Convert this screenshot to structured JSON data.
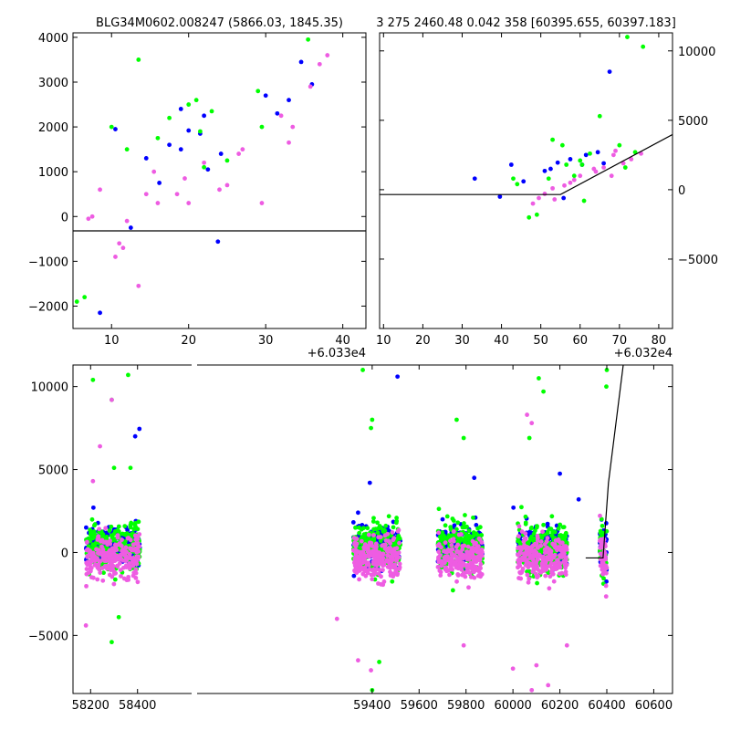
{
  "chart_data": [
    {
      "type": "scatter",
      "title": "BLG34M0602.008247 (5866.03, 1845.35)",
      "xlabel": "",
      "ylabel": "",
      "x_offset_label": "+6.033e4",
      "xlim": [
        60335,
        60373
      ],
      "ylim": [
        -2500,
        4100
      ],
      "xticks": [
        10,
        20,
        30,
        40,
        50,
        60,
        70
      ],
      "yticks": [
        "−2000",
        "−1000",
        "0",
        "1000",
        "2000",
        "3000",
        "4000"
      ],
      "ytick_values": [
        -2000,
        -1000,
        0,
        1000,
        2000,
        3000,
        4000
      ],
      "model_line": [
        [
          60335,
          -320
        ],
        [
          60374.5,
          -320
        ],
        [
          60403,
          4150
        ]
      ],
      "series": [
        {
          "color": "#0000ff",
          "points": [
            [
              60364.6,
              3450
            ],
            [
              60366.0,
              2950
            ],
            [
              60360.0,
              2700
            ],
            [
              60363.0,
              2600
            ],
            [
              60361.5,
              2300
            ],
            [
              60352.0,
              2250
            ],
            [
              60350.0,
              1920
            ],
            [
              60347.5,
              1600
            ],
            [
              60349.0,
              1500
            ],
            [
              60354.2,
              1400
            ],
            [
              60344.5,
              1300
            ],
            [
              60352.5,
              1050
            ],
            [
              60346.2,
              750
            ],
            [
              60353.8,
              -560
            ],
            [
              60334.6,
              1950
            ],
            [
              60340.5,
              1950
            ],
            [
              60342.5,
              -250
            ],
            [
              60338.5,
              -2150
            ],
            [
              60349.0,
              2400
            ],
            [
              60351.5,
              1850
            ]
          ]
        },
        {
          "color": "#00ff00",
          "points": [
            [
              60365.5,
              3950
            ],
            [
              60343.5,
              3500
            ],
            [
              60359.0,
              2800
            ],
            [
              60351.0,
              2600
            ],
            [
              60350.0,
              2500
            ],
            [
              60353.0,
              2350
            ],
            [
              60347.5,
              2200
            ],
            [
              60351.5,
              1900
            ],
            [
              60359.5,
              2000
            ],
            [
              60342.0,
              1500
            ],
            [
              60346.0,
              1750
            ],
            [
              60333.0,
              750
            ],
            [
              60332.5,
              400
            ],
            [
              60340.0,
              2000
            ],
            [
              60336.5,
              -1800
            ],
            [
              60335.5,
              -1900
            ],
            [
              60355.0,
              1250
            ],
            [
              60352.0,
              1100
            ]
          ]
        },
        {
          "color": "#ee5ce2",
          "points": [
            [
              60367.0,
              3400
            ],
            [
              60368.0,
              3600
            ],
            [
              60362.0,
              2250
            ],
            [
              60363.5,
              2000
            ],
            [
              60365.8,
              2900
            ],
            [
              60363.0,
              1650
            ],
            [
              60357.0,
              1500
            ],
            [
              60356.5,
              1400
            ],
            [
              60352.0,
              1200
            ],
            [
              60349.5,
              850
            ],
            [
              60348.5,
              500
            ],
            [
              60355.0,
              700
            ],
            [
              60354.0,
              600
            ],
            [
              60346.0,
              300
            ],
            [
              60344.5,
              500
            ],
            [
              60342.0,
              -100
            ],
            [
              60341.5,
              -700
            ],
            [
              60341.0,
              -600
            ],
            [
              60340.5,
              -900
            ],
            [
              60343.5,
              -1550
            ],
            [
              60338.5,
              600
            ],
            [
              60337.0,
              -50
            ],
            [
              60337.5,
              0
            ],
            [
              60332.0,
              100
            ],
            [
              60359.5,
              300
            ],
            [
              60350.0,
              300
            ],
            [
              60345.5,
              1000
            ]
          ]
        }
      ]
    },
    {
      "type": "scatter",
      "title": "3 275 2460.48 0.042 358 [60395.655, 60397.183]",
      "xlabel": "",
      "ylabel": "",
      "x_offset_label": "+6.032e4",
      "xlim": [
        60329,
        60403.5
      ],
      "ylim": [
        -10000,
        11300
      ],
      "xticks": [
        10,
        20,
        30,
        40,
        50,
        60,
        70,
        80
      ],
      "yticks": [
        "−5000",
        "0",
        "5000",
        "10000"
      ],
      "ytick_values": [
        -5000,
        0,
        5000,
        10000
      ],
      "model_line": [
        [
          60329,
          -350
        ],
        [
          60375,
          -350
        ],
        [
          60405,
          4200
        ]
      ],
      "series": [
        {
          "color": "#0000ff",
          "points": [
            [
              60387.5,
              8500
            ],
            [
              60374.3,
              1950
            ],
            [
              60384.5,
              2700
            ],
            [
              60371.0,
              1350
            ],
            [
              60359.6,
              -500
            ],
            [
              60353.2,
              800
            ],
            [
              60365.6,
              600
            ],
            [
              60377.5,
              2200
            ],
            [
              60386.0,
              1900
            ],
            [
              60380.5,
              1800
            ],
            [
              60372.5,
              1500
            ],
            [
              60375.8,
              -600
            ],
            [
              60381.5,
              2500
            ],
            [
              60362.5,
              1800
            ]
          ]
        },
        {
          "color": "#00ff00",
          "points": [
            [
              60392.0,
              11000
            ],
            [
              60396.0,
              10300
            ],
            [
              60385.0,
              5300
            ],
            [
              60373.0,
              3600
            ],
            [
              60375.5,
              3200
            ],
            [
              60380.5,
              1800
            ],
            [
              60378.5,
              1000
            ],
            [
              60382.5,
              2600
            ],
            [
              60390.0,
              3200
            ],
            [
              60394.0,
              2700
            ],
            [
              60391.5,
              1600
            ],
            [
              60381.0,
              -800
            ],
            [
              60367.0,
              -2000
            ],
            [
              60369.0,
              -1800
            ],
            [
              60364.0,
              400
            ],
            [
              60363.0,
              800
            ],
            [
              60376.5,
              1800
            ],
            [
              60380.0,
              2100
            ],
            [
              60372.0,
              800
            ]
          ]
        },
        {
          "color": "#ee5ce2",
          "points": [
            [
              60388.5,
              2500
            ],
            [
              60395.5,
              2600
            ],
            [
              60391.0,
              1900
            ],
            [
              60393.0,
              2200
            ],
            [
              60386.0,
              1600
            ],
            [
              60384.0,
              1300
            ],
            [
              60380.0,
              1000
            ],
            [
              60378.5,
              700
            ],
            [
              60376.0,
              300
            ],
            [
              60373.0,
              100
            ],
            [
              60371.0,
              -300
            ],
            [
              60369.5,
              -600
            ],
            [
              60368.0,
              -1000
            ],
            [
              60373.5,
              -700
            ],
            [
              60377.5,
              500
            ],
            [
              60383.5,
              1500
            ],
            [
              60388.0,
              1000
            ],
            [
              60389.0,
              2800
            ]
          ]
        }
      ]
    },
    {
      "type": "scatter",
      "title": "",
      "xlabel": "",
      "ylabel": "",
      "xlim": [
        58125,
        60680
      ],
      "ylim": [
        -8500,
        11300
      ],
      "xticks": [
        58200,
        58400,
        59400,
        59600,
        59800,
        60000,
        60200,
        60400,
        60600
      ],
      "yticks": [
        "−5000",
        "0",
        "5000",
        "10000"
      ],
      "ytick_values": [
        -5000,
        0,
        5000,
        10000
      ],
      "model_line": [
        [
          60310,
          -330
        ],
        [
          60384,
          -330
        ],
        [
          60407,
          4200
        ],
        [
          60470,
          11300
        ]
      ],
      "seasons": [
        {
          "start": 58180,
          "end": 58410,
          "count": 230
        },
        {
          "start": 59320,
          "end": 59520,
          "count": 230
        },
        {
          "start": 59680,
          "end": 59870,
          "count": 200
        },
        {
          "start": 60020,
          "end": 60230,
          "count": 230
        },
        {
          "start": 60370,
          "end": 60400,
          "count": 40
        }
      ],
      "series": [
        {
          "color": "#0000ff",
          "base": 400,
          "spread": 520,
          "outlier_points": [
            [
              58390,
              7000
            ],
            [
              58408,
              7450
            ],
            [
              59508,
              10600
            ],
            [
              59390,
              4200
            ],
            [
              59835,
              4500
            ],
            [
              60200,
              4750
            ],
            [
              60280,
              3200
            ],
            [
              59340,
              2400
            ],
            [
              59840,
              2100
            ],
            [
              60002,
              2700
            ],
            [
              58212,
              2700
            ]
          ]
        },
        {
          "color": "#00ff00",
          "base": 350,
          "spread": 700,
          "outlier_points": [
            [
              58210,
              10400
            ],
            [
              58360,
              10700
            ],
            [
              58290,
              9200
            ],
            [
              59360,
              11000
            ],
            [
              59395,
              7500
            ],
            [
              59400,
              8000
            ],
            [
              59760,
              8000
            ],
            [
              59790,
              6900
            ],
            [
              60110,
              10500
            ],
            [
              60130,
              9700
            ],
            [
              60070,
              6900
            ],
            [
              58300,
              5100
            ],
            [
              58370,
              5100
            ],
            [
              60400,
              11000
            ],
            [
              60398,
              10000
            ],
            [
              59400,
              -8300
            ],
            [
              59430,
              -6600
            ],
            [
              58290,
              -5400
            ],
            [
              58320,
              -3900
            ]
          ]
        },
        {
          "color": "#ee5ce2",
          "base": -350,
          "spread": 650,
          "outlier_points": [
            [
              58290,
              9200
            ],
            [
              58240,
              6400
            ],
            [
              58210,
              4300
            ],
            [
              59340,
              -6500
            ],
            [
              59395,
              -7100
            ],
            [
              59790,
              -5600
            ],
            [
              60000,
              -7000
            ],
            [
              60080,
              -8300
            ],
            [
              60150,
              -8000
            ],
            [
              60100,
              -6800
            ],
            [
              60060,
              8300
            ],
            [
              60080,
              7800
            ],
            [
              58180,
              -4400
            ],
            [
              59250,
              -4000
            ],
            [
              60230,
              -5600
            ]
          ]
        }
      ]
    }
  ]
}
